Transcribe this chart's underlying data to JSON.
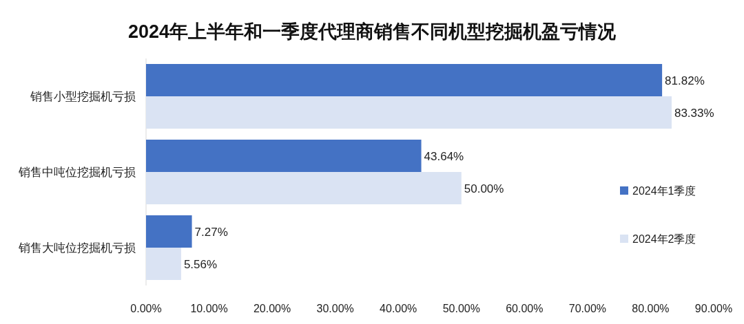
{
  "chart_data": {
    "type": "bar",
    "orientation": "horizontal",
    "title": "2024年上半年和一季度代理商销售不同机型挖掘机盈亏情况",
    "categories": [
      "销售小型挖掘机亏损",
      "销售中吨位挖掘机亏损",
      "销售大吨位挖掘机亏损"
    ],
    "series": [
      {
        "name": "2024年1季度",
        "color": "#4472c4",
        "values": [
          81.82,
          43.64,
          7.27
        ],
        "value_labels": [
          "81.82%",
          "43.64%",
          "7.27%"
        ]
      },
      {
        "name": "2024年2季度",
        "color": "#dae3f3",
        "values": [
          83.33,
          50.0,
          5.56
        ],
        "value_labels": [
          "83.33%",
          "50.00%",
          "5.56%"
        ]
      }
    ],
    "xlim": [
      0,
      90
    ],
    "xticks": [
      {
        "value": 0,
        "label": "0.00%"
      },
      {
        "value": 10,
        "label": "10.00%"
      },
      {
        "value": 20,
        "label": "20.00%"
      },
      {
        "value": 30,
        "label": "30.00%"
      },
      {
        "value": 40,
        "label": "40.00%"
      },
      {
        "value": 50,
        "label": "50.00%"
      },
      {
        "value": 60,
        "label": "60.00%"
      },
      {
        "value": 70,
        "label": "70.00%"
      },
      {
        "value": 80,
        "label": "80.00%"
      },
      {
        "value": 90,
        "label": "90.00%"
      }
    ],
    "legend": "right",
    "grid": false
  }
}
